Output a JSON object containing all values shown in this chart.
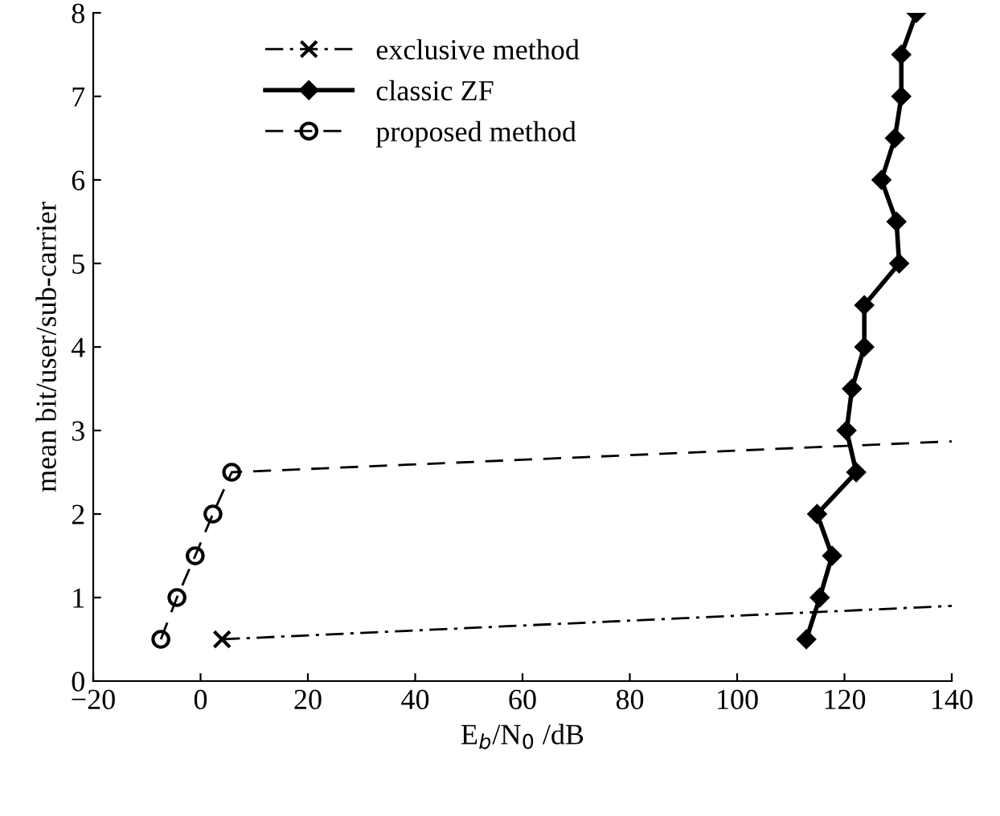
{
  "chart_data": {
    "type": "line",
    "xlabel": "E$_{b}$/N$_{0}$ /dB",
    "ylabel": "mean bit/user/sub-carrier",
    "xlim": [
      -20,
      140
    ],
    "xticks": [
      -20,
      0,
      20,
      40,
      60,
      80,
      100,
      120,
      140
    ],
    "ylim": [
      0,
      8
    ],
    "yticks": [
      0,
      1,
      2,
      3,
      4,
      5,
      6,
      7,
      8
    ],
    "grid": false,
    "legend": "top left",
    "series": [
      {
        "name": "exclusive method",
        "color": "#000000",
        "marker": "none",
        "line_style": "dashdot",
        "x": [
          4.0,
          140
        ],
        "values": [
          0.5,
          0.9
        ]
      },
      {
        "type": "scatter",
        "color": "#000000",
        "marker": "cross",
        "x": [
          4.0
        ],
        "values": [
          0.5
        ]
      },
      {
        "name": "classic ZF",
        "color": "#000000",
        "marker": "diamond",
        "line_style": "solid",
        "x": [
          112.9,
          115.4,
          117.7,
          114.9,
          122.2,
          120.4,
          121.4,
          123.7,
          123.7,
          130.2,
          129.7,
          126.9,
          129.4,
          130.6,
          130.6,
          133.4
        ],
        "values": [
          0.5,
          1.0,
          1.5,
          2.0,
          2.5,
          3.0,
          3.5,
          4.0,
          4.5,
          5.0,
          5.5,
          6.0,
          6.5,
          7.0,
          7.5,
          8.0
        ]
      },
      {
        "name": "proposed method",
        "color": "#000000",
        "marker": "none",
        "line_style": "dashed",
        "x": [
          -7.4,
          -4.4,
          -1.0,
          2.3,
          5.8,
          140
        ],
        "values": [
          0.5,
          1.0,
          1.5,
          2.0,
          2.5,
          2.87
        ]
      },
      {
        "type": "scatter",
        "color": "#000000",
        "marker": "circle",
        "x": [
          -7.4,
          -4.4,
          -1.0,
          2.3,
          5.8
        ],
        "values": [
          0.5,
          1.0,
          1.5,
          2.0,
          2.5
        ]
      }
    ]
  }
}
